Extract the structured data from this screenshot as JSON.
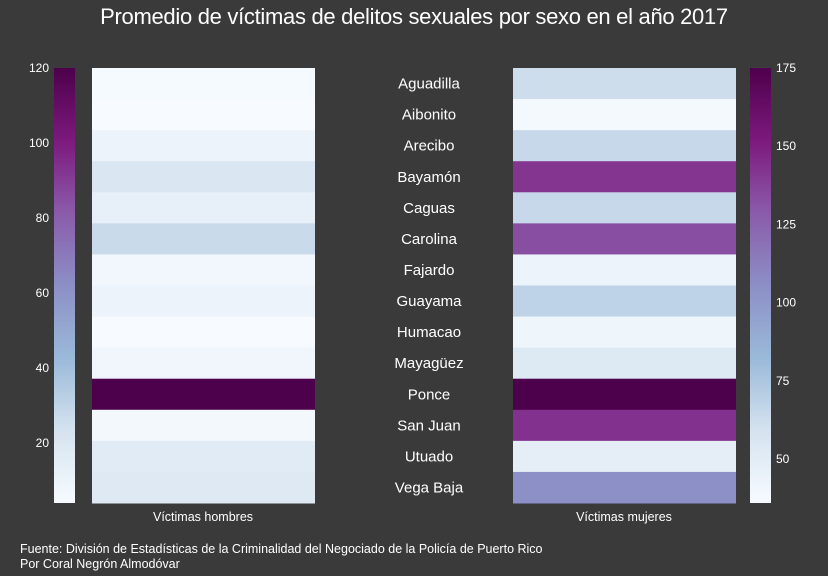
{
  "title": "Promedio de víctimas de delitos sexuales por sexo en el año 2017",
  "footer": {
    "source": "Fuente: División de Estadísticas de la Criminalidad del Negociado de la Policía de Puerto Rico",
    "author": "Por Coral Negrón Almodóvar"
  },
  "colors": {
    "background": "#3a3a3a",
    "scale": [
      "#f7fbff",
      "#d4e2ef",
      "#9bbad9",
      "#8c8fc6",
      "#8a5aa9",
      "#7d1a7e",
      "#4d004b"
    ]
  },
  "chart_data": {
    "type": "heatmap",
    "categories": [
      "Aguadilla",
      "Aibonito",
      "Arecibo",
      "Bayamón",
      "Caguas",
      "Carolina",
      "Fajardo",
      "Guayama",
      "Humacao",
      "Mayagüez",
      "Ponce",
      "San Juan",
      "Utuado",
      "Vega Baja"
    ],
    "series": [
      {
        "name": "Víctimas hombres",
        "values": [
          5,
          4,
          10,
          20,
          13,
          27,
          7,
          10,
          4,
          8,
          120,
          6,
          16,
          18
        ],
        "colorbar": {
          "min": 4,
          "max": 120,
          "ticks": [
            20,
            40,
            60,
            80,
            100,
            120
          ]
        }
      },
      {
        "name": "Víctimas mujeres",
        "values": [
          62,
          38,
          65,
          142,
          65,
          133,
          43,
          68,
          42,
          53,
          175,
          143,
          48,
          105
        ],
        "colorbar": {
          "min": 36,
          "max": 175,
          "ticks": [
            50,
            75,
            100,
            125,
            150,
            175
          ]
        }
      }
    ],
    "grid": false
  }
}
